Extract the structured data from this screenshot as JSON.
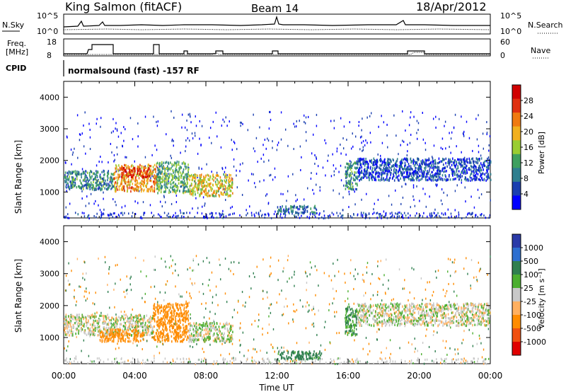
{
  "header": {
    "station": "King Salmon (fitACF)",
    "beam": "Beam 14",
    "date": "18/Apr/2012"
  },
  "side_labels": {
    "nsky": "N.Sky",
    "nsearch": "N.Search",
    "freq_line1": "Freq.",
    "freq_line2": "[MHz]",
    "nave": "Nave",
    "cpid": "CPID"
  },
  "top_panels": {
    "noise_ticks_left": [
      "10^5",
      "10^0"
    ],
    "noise_ticks_right": [
      "10^5",
      "10^0"
    ],
    "freq_ticks_left": [
      "18",
      "8"
    ],
    "nave_ticks_right": [
      "60",
      "0"
    ],
    "cpid_text": "normalsound (fast) -157 RF"
  },
  "axes": {
    "ylabel": "Slant Range [km]",
    "xlabel": "Time UT"
  },
  "colorbars": {
    "power": {
      "label": "Power [dB]",
      "ticks": [
        "28",
        "24",
        "20",
        "16",
        "12",
        "8",
        "4"
      ]
    },
    "velocity": {
      "label": "Velocity [m s⁻¹]",
      "ticks": [
        "1000",
        "500",
        "100",
        "25",
        "-25",
        "-100",
        "-500",
        "-1000"
      ]
    }
  },
  "chart_data": [
    {
      "type": "heatmap",
      "panel": "power",
      "x_ticks": [
        "00:00",
        "04:00",
        "08:00",
        "12:00",
        "16:00",
        "20:00",
        "00:00"
      ],
      "xlim_hours": [
        0,
        24
      ],
      "y_ticks": [
        1000,
        2000,
        3000,
        4000
      ],
      "ylim_km": [
        180,
        4500
      ],
      "colorscale_db": [
        0,
        30
      ],
      "colors": [
        "#0000ff",
        "#1a3fb0",
        "#2f7f8f",
        "#3fa05f",
        "#9acd32",
        "#f2b01e",
        "#f07a10",
        "#e03010",
        "#d00000"
      ],
      "regions": [
        {
          "t0": 0.0,
          "t1": 2.8,
          "r0": 1100,
          "r1": 1700,
          "power": 9
        },
        {
          "t0": 2.8,
          "t1": 5.2,
          "r0": 1050,
          "r1": 1900,
          "power": 20
        },
        {
          "t0": 3.2,
          "t1": 4.8,
          "r0": 1500,
          "r1": 1800,
          "power": 26
        },
        {
          "t0": 5.2,
          "t1": 7.0,
          "r0": 1000,
          "r1": 2000,
          "power": 12
        },
        {
          "t0": 7.0,
          "t1": 9.5,
          "r0": 900,
          "r1": 1600,
          "power": 17
        },
        {
          "t0": 12.0,
          "t1": 14.2,
          "r0": 350,
          "r1": 600,
          "power": 8
        },
        {
          "t0": 15.8,
          "t1": 16.5,
          "r0": 1100,
          "r1": 2000,
          "power": 10
        },
        {
          "t0": 16.5,
          "t1": 24.0,
          "r0": 1400,
          "r1": 2100,
          "power": 5
        }
      ]
    },
    {
      "type": "heatmap",
      "panel": "velocity",
      "x_ticks": [
        "00:00",
        "04:00",
        "08:00",
        "12:00",
        "16:00",
        "20:00",
        "00:00"
      ],
      "xlim_hours": [
        0,
        24
      ],
      "y_ticks": [
        1000,
        2000,
        3000,
        4000
      ],
      "ylim_km": [
        180,
        4500
      ],
      "colors": [
        "#2a3aa8",
        "#2e6fd0",
        "#2f7f4f",
        "#4caf30",
        "#c8c8c8",
        "#ffb060",
        "#ff8c00",
        "#f05010",
        "#e00000"
      ],
      "regions": [
        {
          "t0": 0.0,
          "t1": 5.0,
          "r0": 1100,
          "r1": 1750,
          "velocity": 0
        },
        {
          "t0": 2.0,
          "t1": 4.5,
          "r0": 900,
          "r1": 1300,
          "velocity": -150
        },
        {
          "t0": 5.0,
          "t1": 7.0,
          "r0": 900,
          "r1": 2100,
          "velocity": -300
        },
        {
          "t0": 7.0,
          "t1": 9.5,
          "r0": 900,
          "r1": 1500,
          "velocity": 10
        },
        {
          "t0": 12.0,
          "t1": 14.5,
          "r0": 350,
          "r1": 600,
          "velocity": 150
        },
        {
          "t0": 15.8,
          "t1": 16.5,
          "r0": 1100,
          "r1": 2000,
          "velocity": 120
        },
        {
          "t0": 16.5,
          "t1": 24.0,
          "r0": 1400,
          "r1": 2100,
          "velocity": 0
        }
      ]
    }
  ]
}
